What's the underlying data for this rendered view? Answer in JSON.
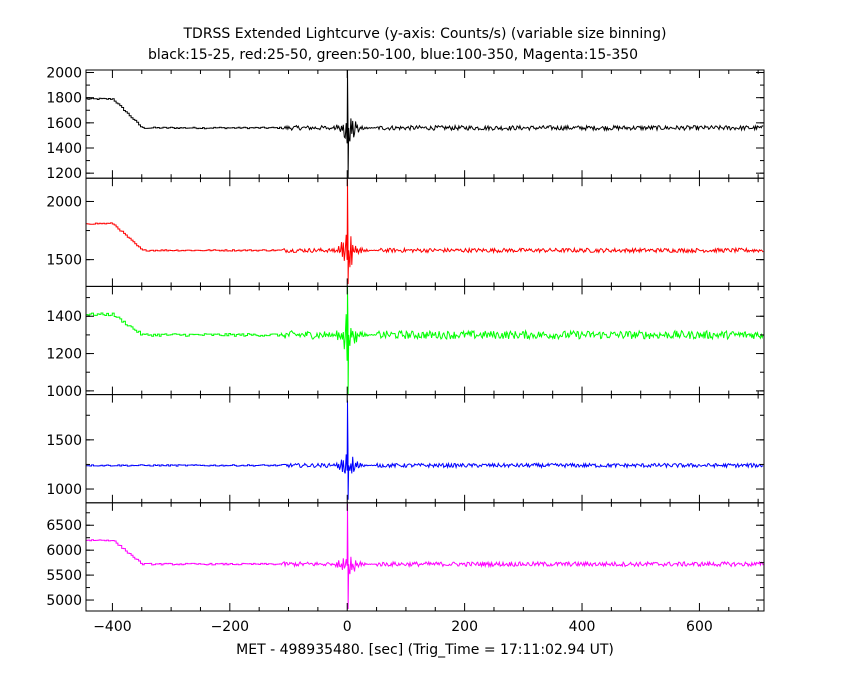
{
  "chart_data": {
    "type": "line",
    "title": "TDRSS Extended Lightcurve (y-axis: Counts/s) (variable size binning)",
    "subtitle": "black:15-25, red:25-50, green:50-100, blue:100-350, Magenta:15-350",
    "xlabel": "MET - 498935480. [sec] (Trig_Time = 17:11:02.94 UT)",
    "xlim": [
      -445,
      710
    ],
    "xticks": [
      -400,
      -200,
      0,
      200,
      400,
      600
    ],
    "xtick_labels": [
      "−400",
      "−200",
      "0",
      "200",
      "400",
      "600"
    ],
    "grid": false,
    "panels": [
      {
        "name": "black:15-25",
        "color": "#000000",
        "ylim": [
          1160,
          2020
        ],
        "yticks": [
          1200,
          1400,
          1600,
          1800,
          2000
        ],
        "ytick_labels": [
          "1200",
          "1400",
          "1600",
          "1800",
          "2000"
        ],
        "pre_start": 1790,
        "baseline": 1560,
        "noise": 18,
        "peak_high": 2020,
        "peak_low": 1160,
        "burst_amp": 90
      },
      {
        "name": "red:25-50",
        "color": "#ff0000",
        "ylim": [
          1270,
          2200
        ],
        "yticks": [
          1500,
          2000
        ],
        "ytick_labels": [
          "1500",
          "2000"
        ],
        "pre_start": 1810,
        "baseline": 1580,
        "noise": 18,
        "peak_high": 2190,
        "peak_low": 1290,
        "burst_amp": 110
      },
      {
        "name": "green:50-100",
        "color": "#00ff00",
        "ylim": [
          980,
          1560
        ],
        "yticks": [
          1000,
          1200,
          1400
        ],
        "ytick_labels": [
          "1000",
          "1200",
          "1400"
        ],
        "pre_start": 1410,
        "baseline": 1300,
        "noise": 22,
        "peak_high": 1560,
        "peak_low": 980,
        "burst_amp": 80
      },
      {
        "name": "blue:100-350",
        "color": "#0000ff",
        "ylim": [
          860,
          1960
        ],
        "yticks": [
          1000,
          1500
        ],
        "ytick_labels": [
          "1000",
          "1500"
        ],
        "pre_start": 1240,
        "baseline": 1240,
        "noise": 20,
        "peak_high": 1900,
        "peak_low": 890,
        "burst_amp": 90
      },
      {
        "name": "Magenta:15-350",
        "color": "#ff00ff",
        "ylim": [
          4780,
          6950
        ],
        "yticks": [
          5000,
          5500,
          6000,
          6500
        ],
        "ytick_labels": [
          "5000",
          "5500",
          "6000",
          "6500"
        ],
        "pre_start": 6200,
        "baseline": 5720,
        "noise": 45,
        "peak_high": 6930,
        "peak_low": 4820,
        "burst_amp": 200
      }
    ]
  }
}
